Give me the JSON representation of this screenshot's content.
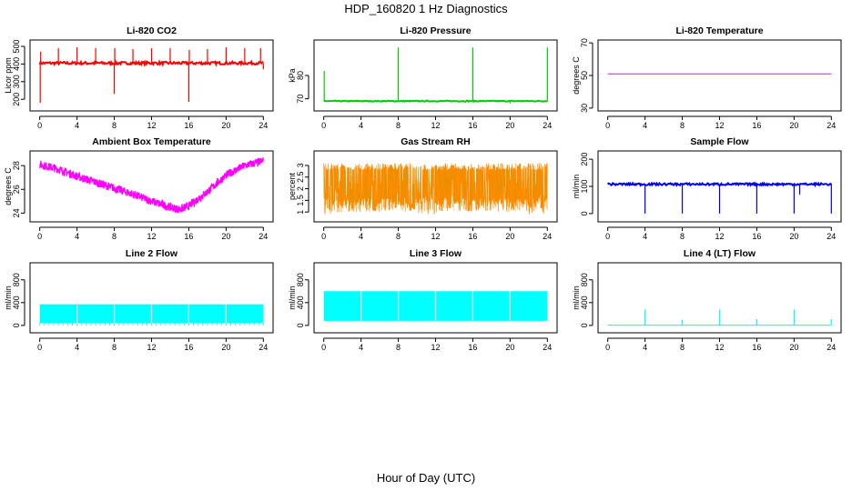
{
  "page": {
    "title": "HDP_160820  1 Hz Diagnostics",
    "xlabel": "Hour of Day (UTC)"
  },
  "chart_data": [
    {
      "type": "line",
      "title": "Li-820 CO2",
      "ylabel": "Licor ppm",
      "color": "#ff0000",
      "xlim": [
        0,
        24
      ],
      "ylim": [
        150,
        520
      ],
      "yticks": [
        200,
        300,
        400,
        500
      ],
      "xticks": [
        0,
        4,
        8,
        12,
        16,
        20,
        24
      ],
      "series": [
        {
          "baseline": 405,
          "noise": 8,
          "spikes": [
            {
              "x": 0.05,
              "y": 180
            },
            {
              "x": 0.1,
              "y": 470
            },
            {
              "x": 2.0,
              "y": 490
            },
            {
              "x": 4.0,
              "y": 495
            },
            {
              "x": 6.0,
              "y": 490
            },
            {
              "x": 8.0,
              "y": 230
            },
            {
              "x": 8.05,
              "y": 490
            },
            {
              "x": 10.0,
              "y": 485
            },
            {
              "x": 12.0,
              "y": 490
            },
            {
              "x": 14.0,
              "y": 490
            },
            {
              "x": 16.0,
              "y": 185
            },
            {
              "x": 16.05,
              "y": 480
            },
            {
              "x": 18.0,
              "y": 485
            },
            {
              "x": 20.0,
              "y": 495
            },
            {
              "x": 22.0,
              "y": 490
            },
            {
              "x": 23.7,
              "y": 490
            },
            {
              "x": 24.0,
              "y": 370
            }
          ]
        }
      ]
    },
    {
      "type": "line",
      "title": "Li-820 Pressure",
      "ylabel": "kPa",
      "color": "#00cc00",
      "xlim": [
        0,
        24
      ],
      "ylim": [
        66,
        94
      ],
      "yticks": [
        70,
        80
      ],
      "xticks": [
        0,
        4,
        8,
        12,
        16,
        20,
        24
      ],
      "series": [
        {
          "baseline": 69,
          "noise": 0.2,
          "spikes": [
            {
              "x": 0.05,
              "y": 82
            },
            {
              "x": 8.0,
              "y": 92
            },
            {
              "x": 16.0,
              "y": 92
            },
            {
              "x": 20.0,
              "y": 68
            },
            {
              "x": 24.0,
              "y": 92
            }
          ]
        }
      ]
    },
    {
      "type": "line",
      "title": "Li-820 Temperature",
      "ylabel": "degrees C",
      "color": "#ff00ff",
      "xlim": [
        0,
        24
      ],
      "ylim": [
        30,
        70
      ],
      "yticks": [
        30,
        50,
        70
      ],
      "xticks": [
        0,
        4,
        8,
        12,
        16,
        20,
        24
      ],
      "series": [
        {
          "baseline": 51,
          "noise": 0,
          "spikes": []
        }
      ]
    },
    {
      "type": "line",
      "title": "Ambient Box Temperature",
      "ylabel": "degrees C",
      "color": "#ff00ff",
      "xlim": [
        0,
        24
      ],
      "ylim": [
        23.5,
        29
      ],
      "yticks": [
        24,
        26,
        28
      ],
      "xticks": [
        0,
        4,
        8,
        12,
        16,
        20,
        24
      ],
      "series": [
        {
          "curve": [
            [
              0,
              28.1
            ],
            [
              2,
              27.7
            ],
            [
              4,
              27.1
            ],
            [
              6,
              26.6
            ],
            [
              8,
              26.1
            ],
            [
              10,
              25.6
            ],
            [
              12,
              25.0
            ],
            [
              14,
              24.5
            ],
            [
              15,
              24.3
            ],
            [
              16,
              24.6
            ],
            [
              18,
              25.8
            ],
            [
              20,
              27.2
            ],
            [
              22,
              28.0
            ],
            [
              24,
              28.4
            ]
          ],
          "noise": 0.35
        }
      ]
    },
    {
      "type": "line",
      "title": "Gas Stream RH",
      "ylabel": "percent",
      "color": "#ff8c00",
      "color2": "#999900",
      "xlim": [
        0,
        24
      ],
      "ylim": [
        0.7,
        3.5
      ],
      "yticks": [
        1.0,
        1.5,
        2.0,
        2.5,
        3.0
      ],
      "xticks": [
        0,
        4,
        8,
        12,
        16,
        20,
        24
      ],
      "series": [
        {
          "low": 1.0,
          "high": 3.1,
          "noise": 0.15
        }
      ]
    },
    {
      "type": "line",
      "title": "Sample Flow",
      "ylabel": "ml/min",
      "color": "#0000ff",
      "xlim": [
        0,
        24
      ],
      "ylim": [
        -20,
        220
      ],
      "yticks": [
        0,
        100,
        200
      ],
      "xticks": [
        0,
        4,
        8,
        12,
        16,
        20,
        24
      ],
      "series": [
        {
          "baseline": 108,
          "noise": 4,
          "spikes": [
            {
              "x": 4.0,
              "y": 0
            },
            {
              "x": 8.0,
              "y": 0
            },
            {
              "x": 12.0,
              "y": 0
            },
            {
              "x": 16.0,
              "y": 0
            },
            {
              "x": 20.0,
              "y": 0
            },
            {
              "x": 20.6,
              "y": 70
            },
            {
              "x": 24.0,
              "y": 0
            }
          ]
        }
      ]
    },
    {
      "type": "area",
      "title": "Line 2 Flow",
      "ylabel": "ml/min",
      "color": "#00ffff",
      "xlim": [
        0,
        24
      ],
      "ylim": [
        -80,
        1050
      ],
      "yticks": [
        0,
        400,
        800
      ],
      "xticks": [
        0,
        4,
        8,
        12,
        16,
        20,
        24
      ],
      "series": [
        {
          "low": 40,
          "high": 370,
          "notches": [
            4,
            8,
            12,
            16,
            20
          ],
          "dip_every": 0.5,
          "dip_low": 0
        }
      ]
    },
    {
      "type": "area",
      "title": "Line 3 Flow",
      "ylabel": "ml/min",
      "color": "#00ffff",
      "xlim": [
        0,
        24
      ],
      "ylim": [
        -80,
        1050
      ],
      "yticks": [
        0,
        400,
        800
      ],
      "xticks": [
        0,
        4,
        8,
        12,
        16,
        20,
        24
      ],
      "series": [
        {
          "low": 80,
          "high": 600,
          "notches": [
            4,
            8,
            12,
            16,
            20
          ],
          "dip_every": 0,
          "dip_low": 0
        }
      ]
    },
    {
      "type": "line",
      "title": "Line 4 (LT) Flow",
      "ylabel": "ml/min",
      "color": "#00ffff",
      "xlim": [
        0,
        24
      ],
      "ylim": [
        -80,
        1050
      ],
      "yticks": [
        0,
        400,
        800
      ],
      "xticks": [
        0,
        4,
        8,
        12,
        16,
        20,
        24
      ],
      "series": [
        {
          "baseline": 5,
          "noise": 0,
          "spikes": [
            {
              "x": 4.0,
              "y": 280
            },
            {
              "x": 8.0,
              "y": 100
            },
            {
              "x": 12.0,
              "y": 280
            },
            {
              "x": 16.0,
              "y": 110
            },
            {
              "x": 20.0,
              "y": 280
            },
            {
              "x": 24.0,
              "y": 110
            }
          ]
        }
      ]
    }
  ]
}
